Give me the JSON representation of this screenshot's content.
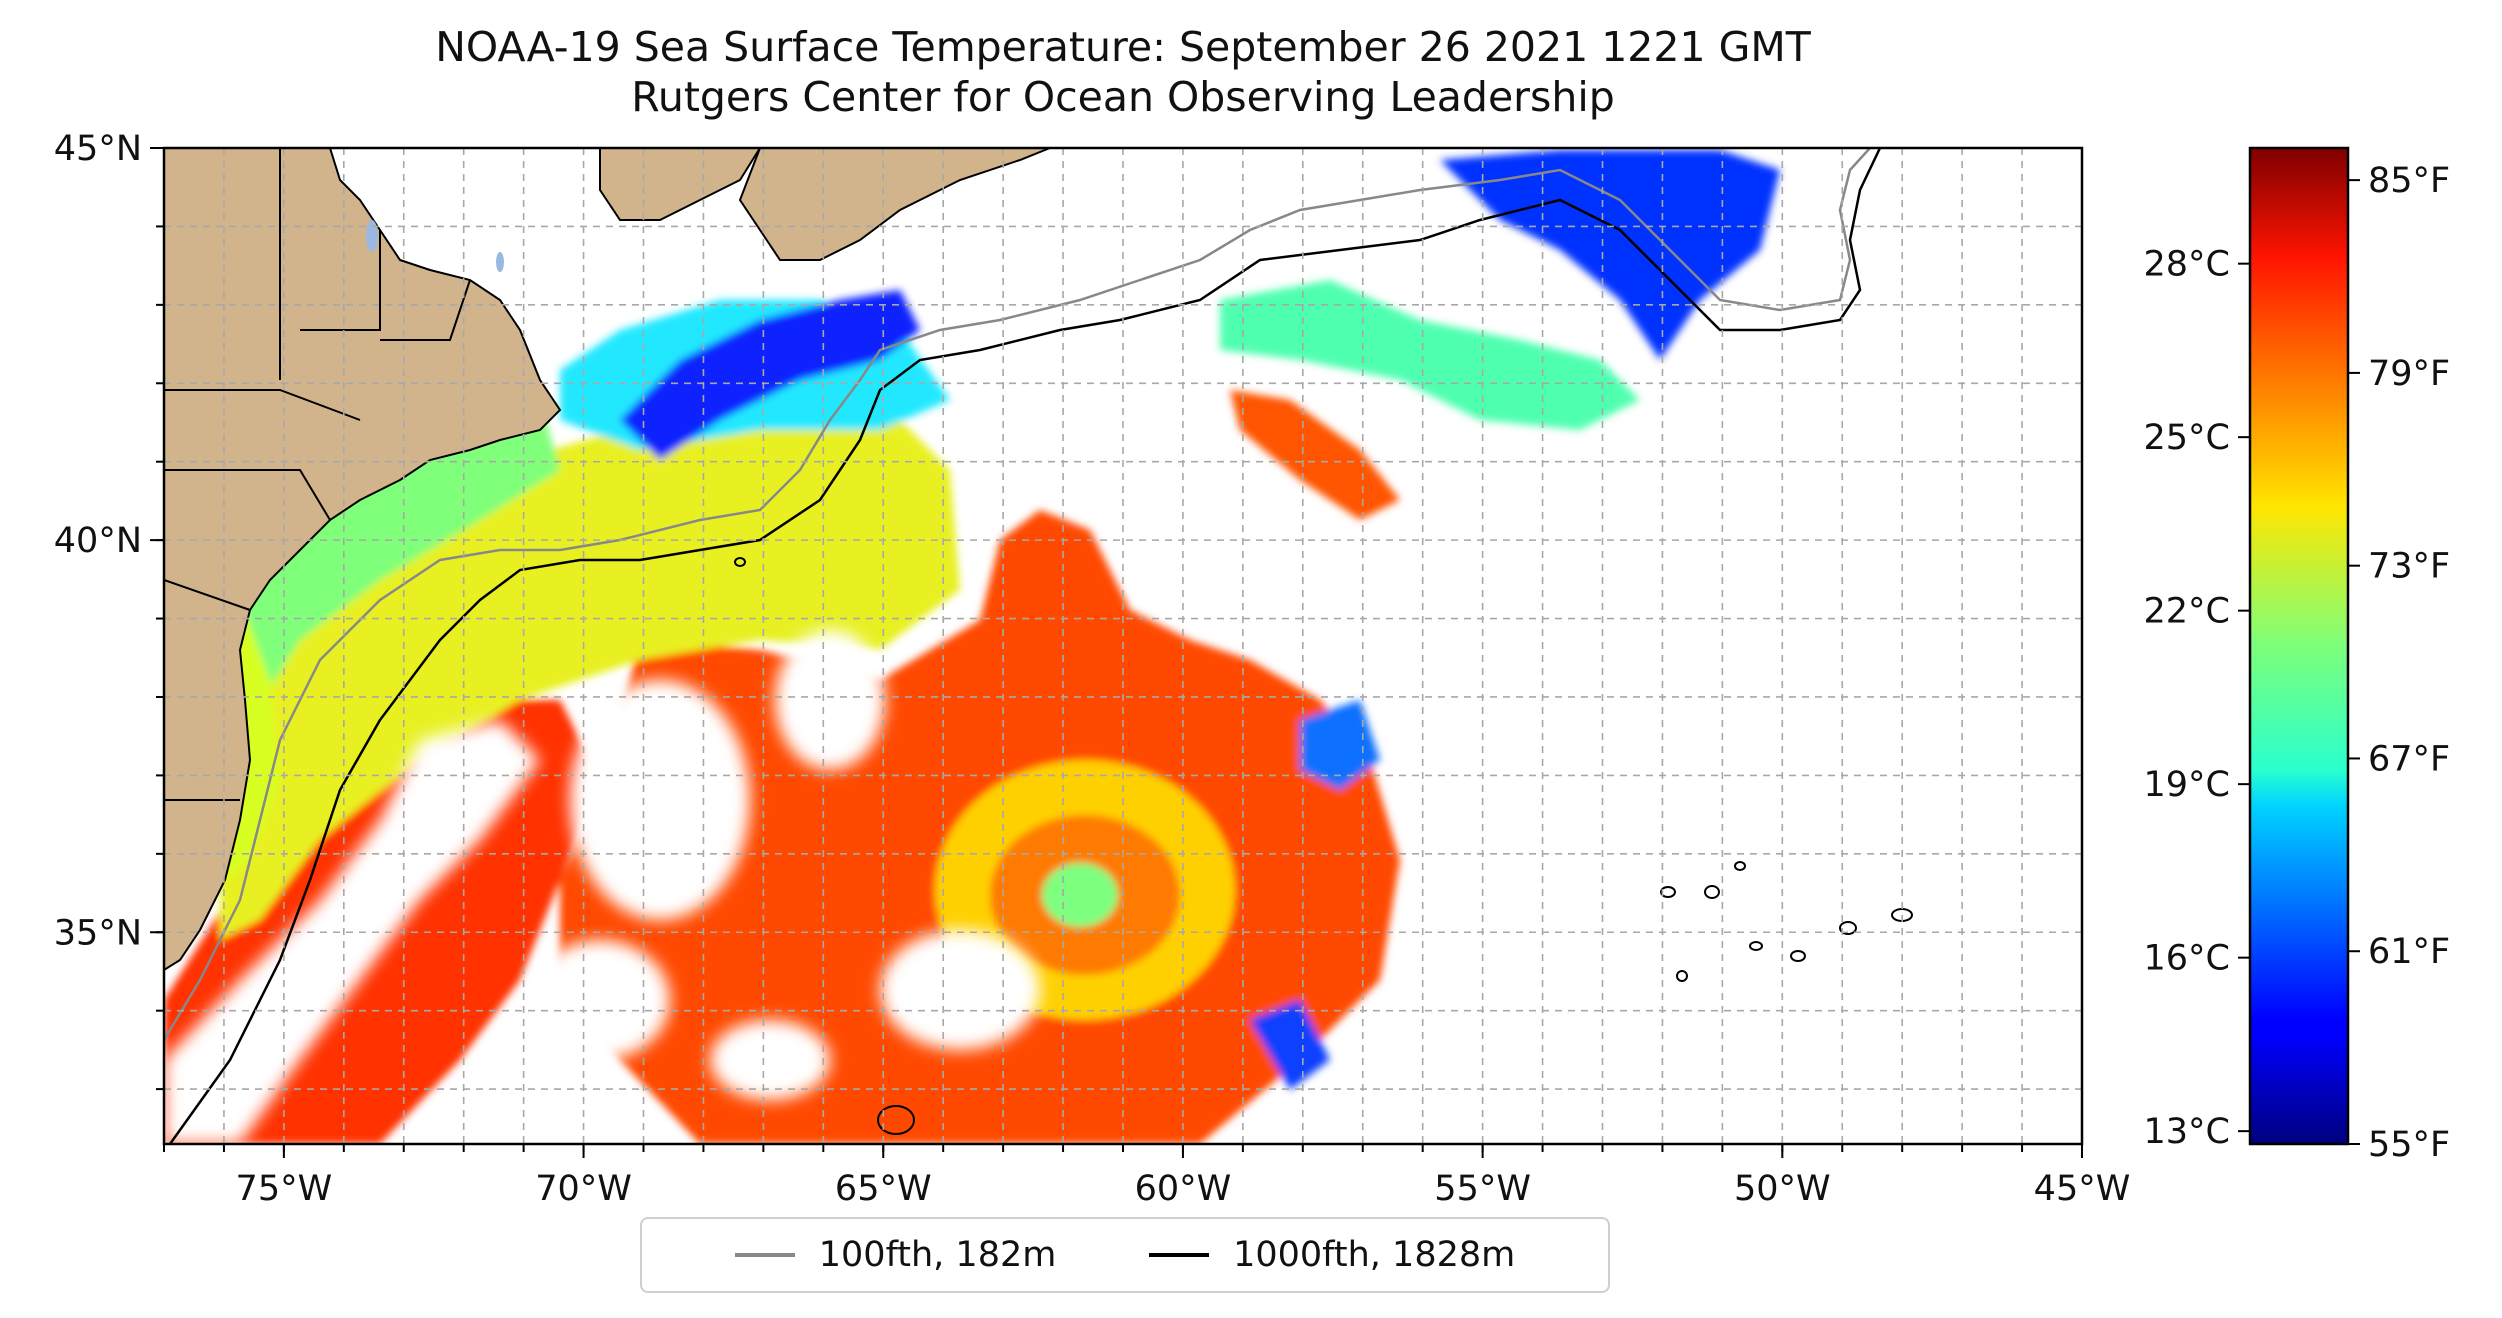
{
  "title_line1": "NOAA-19 Sea Surface Temperature: September 26 2021 1221 GMT",
  "title_line2": "Rutgers Center for Ocean Observing Leadership",
  "map": {
    "lon_range": [
      -77,
      -45
    ],
    "lat_range": [
      32.3,
      45
    ],
    "lon_ticks": [
      {
        "value": -75,
        "label": "75°W"
      },
      {
        "value": -70,
        "label": "70°W"
      },
      {
        "value": -65,
        "label": "65°W"
      },
      {
        "value": -60,
        "label": "60°W"
      },
      {
        "value": -55,
        "label": "55°W"
      },
      {
        "value": -50,
        "label": "50°W"
      },
      {
        "value": -45,
        "label": "45°W"
      }
    ],
    "lat_ticks": [
      {
        "value": 45,
        "label": "45°N"
      },
      {
        "value": 40,
        "label": "40°N"
      },
      {
        "value": 35,
        "label": "35°N"
      }
    ],
    "grid": true,
    "land_color": "#d2b48c"
  },
  "colorbar": {
    "temp_range_f": [
      55,
      86
    ],
    "celsius_ticks": [
      {
        "value_f": 82.4,
        "label": "28°C"
      },
      {
        "value_f": 77,
        "label": "25°C"
      },
      {
        "value_f": 71.6,
        "label": "22°C"
      },
      {
        "value_f": 66.2,
        "label": "19°C"
      },
      {
        "value_f": 60.8,
        "label": "16°C"
      },
      {
        "value_f": 55.4,
        "label": "13°C"
      }
    ],
    "fahrenheit_ticks": [
      {
        "value_f": 85,
        "label": "85°F"
      },
      {
        "value_f": 79,
        "label": "79°F"
      },
      {
        "value_f": 73,
        "label": "73°F"
      },
      {
        "value_f": 67,
        "label": "67°F"
      },
      {
        "value_f": 61,
        "label": "61°F"
      },
      {
        "value_f": 55,
        "label": "55°F"
      }
    ],
    "colormap": "jet"
  },
  "legend": {
    "items": [
      {
        "label": "100fth, 182m",
        "color": "#888888"
      },
      {
        "label": "1000fth, 1828m",
        "color": "#000000"
      }
    ]
  }
}
